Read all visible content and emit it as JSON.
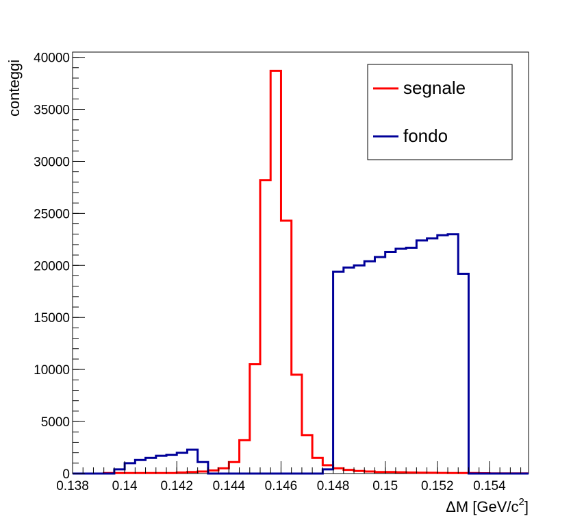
{
  "chart_data": {
    "type": "line",
    "title": "",
    "xlabel": "ΔM [GeV/c",
    "xlabel_sup": "2",
    "xlabel_suffix": "]",
    "ylabel": "conteggi",
    "xlim": [
      0.138,
      0.1555
    ],
    "ylim": [
      0,
      40500
    ],
    "xticks": [
      {
        "v": 0.138,
        "label": "0.138"
      },
      {
        "v": 0.14,
        "label": "0.14"
      },
      {
        "v": 0.142,
        "label": "0.142"
      },
      {
        "v": 0.144,
        "label": "0.144"
      },
      {
        "v": 0.146,
        "label": "0.146"
      },
      {
        "v": 0.148,
        "label": "0.148"
      },
      {
        "v": 0.15,
        "label": "0.15"
      },
      {
        "v": 0.152,
        "label": "0.152"
      },
      {
        "v": 0.154,
        "label": "0.154"
      }
    ],
    "yticks": [
      {
        "v": 0,
        "label": "0"
      },
      {
        "v": 5000,
        "label": "5000"
      },
      {
        "v": 10000,
        "label": "10000"
      },
      {
        "v": 15000,
        "label": "15000"
      },
      {
        "v": 20000,
        "label": "20000"
      },
      {
        "v": 25000,
        "label": "25000"
      },
      {
        "v": 30000,
        "label": "30000"
      },
      {
        "v": 35000,
        "label": "35000"
      },
      {
        "v": 40000,
        "label": "40000"
      }
    ],
    "legend_position": "top-right",
    "grid": false,
    "bin_edges": [
      0.138,
      0.1384,
      0.1388,
      0.1392,
      0.1396,
      0.14,
      0.1404,
      0.1408,
      0.1412,
      0.1416,
      0.142,
      0.1424,
      0.1428,
      0.1432,
      0.1436,
      0.144,
      0.1444,
      0.1448,
      0.1452,
      0.1456,
      0.146,
      0.1464,
      0.1468,
      0.1472,
      0.1476,
      0.148,
      0.1484,
      0.1488,
      0.1492,
      0.1496,
      0.15,
      0.1504,
      0.1508,
      0.1512,
      0.1516,
      0.152,
      0.1524,
      0.1528,
      0.1532,
      0.1536,
      0.154,
      0.1544,
      0.1548,
      0.1552,
      0.1555
    ],
    "series": [
      {
        "name": "segnale",
        "color": "#ff0000",
        "values": [
          0,
          0,
          0,
          50,
          50,
          50,
          50,
          50,
          50,
          50,
          100,
          150,
          200,
          300,
          500,
          1100,
          3200,
          10500,
          28200,
          38700,
          24300,
          9500,
          3700,
          1500,
          800,
          500,
          350,
          250,
          200,
          150,
          150,
          120,
          100,
          80,
          70,
          60,
          50,
          50,
          50,
          30,
          20,
          20,
          20,
          20
        ]
      },
      {
        "name": "fondo",
        "color": "#000099",
        "values": [
          0,
          0,
          0,
          0,
          400,
          1000,
          1300,
          1500,
          1700,
          1800,
          2000,
          2300,
          1100,
          0,
          0,
          0,
          0,
          0,
          0,
          0,
          0,
          0,
          0,
          0,
          400,
          19400,
          19800,
          20000,
          20400,
          20800,
          21300,
          21600,
          21700,
          22400,
          22600,
          22900,
          23000,
          19200,
          0,
          0,
          0,
          0,
          0,
          0
        ]
      }
    ]
  }
}
